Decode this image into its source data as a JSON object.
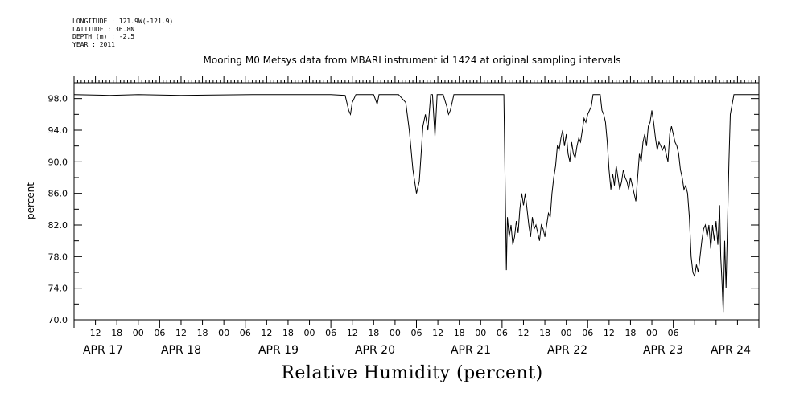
{
  "meta": {
    "longitude": "LONGITUDE : 121.9W(-121.9)",
    "latitude": "LATITUDE : 36.8N",
    "depth": "DEPTH (m) : -2.5",
    "year": "YEAR : 2011"
  },
  "chart_data": {
    "type": "line",
    "title": "Mooring M0 Metsys data from MBARI instrument id 1424 at original sampling intervals",
    "xlabel": "Relative Humidity (percent)",
    "ylabel": "percent",
    "ylim": [
      70,
      100
    ],
    "yticks": [
      "70.0",
      "74.0",
      "78.0",
      "82.0",
      "86.0",
      "90.0",
      "94.0",
      "98.0"
    ],
    "xlim_hours": [
      0,
      192
    ],
    "hour_tick_labels": [
      "12",
      "18",
      "00",
      "06",
      "12",
      "18",
      "00",
      "06",
      "12",
      "18",
      "00",
      "06",
      "12",
      "18",
      "00",
      "06",
      "12",
      "18",
      "00",
      "06",
      "12",
      "18",
      "00",
      "06",
      "12",
      "18",
      "00",
      "06"
    ],
    "day_labels": [
      "APR 17",
      "APR 18",
      "APR 19",
      "APR 20",
      "APR 21",
      "APR 22",
      "APR 23",
      "APR 24"
    ],
    "grid": false,
    "series": [
      {
        "values_x_hours": [
          0,
          10,
          18,
          30,
          50,
          72,
          76,
          77,
          77.5,
          78,
          79,
          80,
          84,
          85,
          85.5,
          86,
          91,
          93,
          94,
          95,
          96,
          96.8,
          97.3,
          97.8,
          98.5,
          99.2,
          100,
          100.5,
          101.2,
          101.8,
          102.5,
          103.5,
          104.5,
          105,
          105.5,
          106,
          106.5,
          107,
          107.5,
          108,
          109,
          114,
          120.5,
          121.2,
          121.5,
          122,
          122.5,
          123,
          123.5,
          124,
          124.5,
          125,
          125.5,
          126,
          126.5,
          127,
          127.5,
          128,
          128.5,
          129,
          129.5,
          130,
          130.5,
          131,
          131.5,
          132,
          132.5,
          133,
          133.5,
          134,
          134.5,
          135,
          135.5,
          136,
          136.5,
          137,
          137.5,
          138,
          138.5,
          139,
          139.5,
          140,
          140.5,
          141,
          141.5,
          142,
          142.5,
          143,
          143.5,
          144,
          144.5,
          145,
          145.5,
          146,
          146.5,
          147,
          147.5,
          148,
          148.5,
          149,
          149.5,
          150,
          150.5,
          151,
          151.5,
          152,
          152.5,
          153,
          153.5,
          154,
          154.5,
          155,
          155.5,
          156,
          156.5,
          157,
          157.5,
          158,
          158.5,
          159,
          159.5,
          160,
          160.5,
          161,
          161.5,
          162,
          162.5,
          163,
          163.5,
          164,
          164.5,
          165,
          165.5,
          166,
          166.5,
          167,
          167.5,
          168,
          168.5,
          169,
          169.5,
          170,
          170.5,
          171,
          171.5,
          172,
          172.5,
          173,
          173.5,
          174,
          174.5,
          175,
          175.5,
          176,
          176.5,
          177,
          177.5,
          178,
          178.5,
          179,
          179.5,
          180,
          180.5,
          181,
          181.3,
          181.7,
          182,
          182.4,
          182.8,
          183.2,
          183.6,
          184,
          185,
          186,
          188,
          192
        ],
        "values": [
          98.5,
          98.4,
          98.5,
          98.4,
          98.5,
          98.5,
          98.4,
          96.5,
          96.0,
          97.5,
          98.5,
          98.5,
          98.5,
          97.3,
          98.5,
          98.5,
          98.5,
          97.5,
          94.0,
          89.0,
          86.0,
          87.5,
          91.0,
          94.5,
          96.0,
          94.0,
          98.5,
          98.5,
          93.2,
          98.5,
          98.5,
          98.5,
          97.0,
          96.0,
          96.5,
          97.5,
          98.5,
          98.5,
          98.5,
          98.5,
          98.5,
          98.5,
          98.5,
          76.3,
          83.0,
          80.5,
          82.0,
          79.5,
          80.5,
          82.5,
          81.0,
          84.0,
          86.0,
          84.5,
          86.0,
          84.0,
          82.0,
          80.5,
          83.0,
          81.5,
          82.0,
          81.0,
          80.0,
          82.0,
          81.5,
          80.5,
          82.0,
          83.5,
          83.0,
          86.0,
          88.0,
          89.5,
          92.0,
          91.5,
          93.0,
          94.0,
          92.0,
          93.5,
          91.0,
          90.0,
          92.5,
          91.0,
          90.5,
          92.0,
          93.0,
          92.5,
          94.0,
          95.5,
          95.0,
          96.0,
          96.5,
          97.0,
          98.5,
          98.5,
          98.5,
          98.5,
          98.5,
          96.5,
          96.0,
          95.0,
          92.5,
          89.0,
          86.5,
          88.5,
          87.0,
          89.5,
          88.0,
          86.5,
          87.5,
          89.0,
          88.0,
          87.5,
          86.5,
          88.0,
          87.0,
          86.0,
          85.0,
          88.0,
          91.0,
          90.0,
          92.5,
          93.5,
          92.0,
          94.5,
          95.0,
          96.5,
          95.0,
          93.0,
          91.5,
          92.5,
          92.0,
          91.5,
          92.0,
          91.0,
          90.0,
          93.5,
          94.5,
          93.5,
          92.5,
          92.0,
          91.0,
          89.0,
          88.0,
          86.5,
          87.0,
          86.0,
          83.0,
          78.0,
          76.0,
          75.5,
          77.0,
          76.0,
          78.0,
          80.0,
          81.5,
          82.0,
          80.5,
          82.0,
          79.0,
          82.0,
          80.0,
          82.5,
          79.5,
          84.5,
          78.0,
          74.5,
          71.0,
          80.0,
          74.0,
          82.0,
          90.0,
          96.0,
          98.5,
          98.5,
          98.5,
          98.5
        ]
      }
    ]
  }
}
